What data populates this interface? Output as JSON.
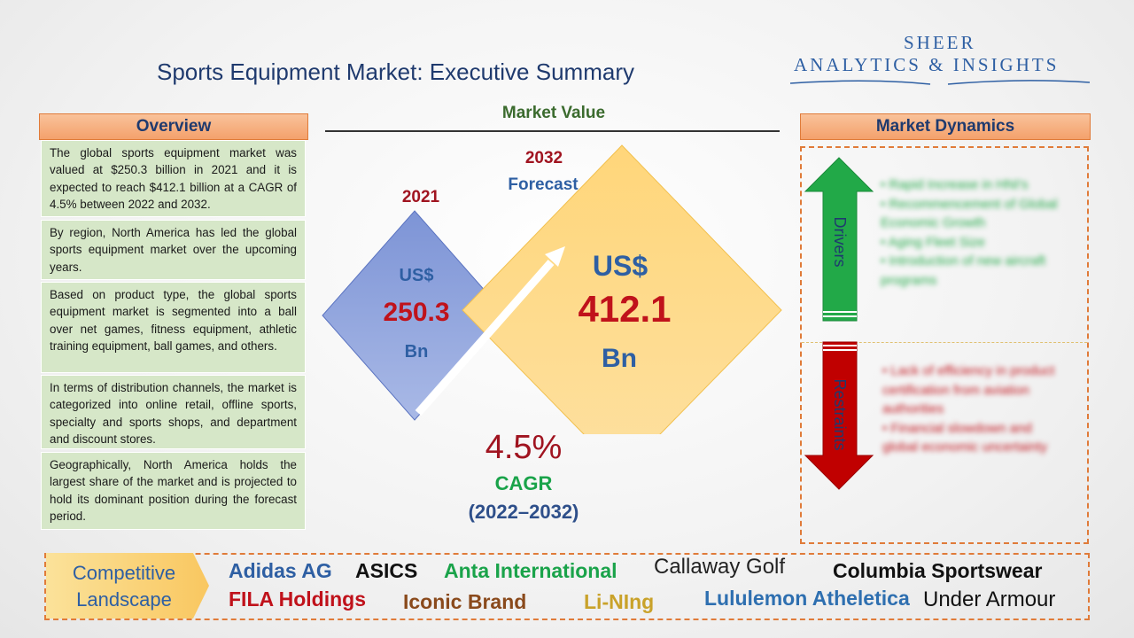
{
  "header": {
    "title": "Sports Equipment Market: Executive Summary",
    "logo_line1": "SHEER",
    "logo_line2": "ANALYTICS & INSIGHTS"
  },
  "overview": {
    "heading": "Overview",
    "paragraphs": [
      "The global sports equipment market was valued at $250.3 billion in 2021 and it is expected to reach $412.1 billion at a CAGR of 4.5% between 2022 and 2032.",
      "By region, North America has led the global sports equipment market over the upcoming years.",
      "Based on product type, the global sports equipment market is segmented into a ball over net games, fitness equipment, athletic training equipment, ball games, and others.",
      "In terms of distribution channels, the market is categorized into online retail, offline sports, specialty and sports shops, and department and discount stores.",
      "Geographically, North America holds the largest share of the market and is projected to hold its dominant position during the forecast period."
    ]
  },
  "market_value": {
    "heading": "Market Value",
    "base_year": "2021",
    "base_currency": "US$",
    "base_value": "250.3",
    "base_unit": "Bn",
    "forecast_year": "2032",
    "forecast_label": "Forecast",
    "forecast_currency": "US$",
    "forecast_value": "412.1",
    "forecast_unit": "Bn",
    "cagr_value": "4.5%",
    "cagr_label": "CAGR",
    "cagr_period": "(2022–2032)"
  },
  "dynamics": {
    "heading": "Market Dynamics",
    "drivers_label": "Drivers",
    "restraints_label": "Restraints",
    "drivers": [
      "Rapid Increase in HNI's",
      "Recommencement of Global Economic Growth",
      "Aging Fleet Size",
      "Introduction of new aircraft programs"
    ],
    "restraints": [
      "Lack of efficiency in product certification from aviation authorities",
      "Financial slowdown and global economic uncertainty"
    ]
  },
  "competitive": {
    "label_line1": "Competitive",
    "label_line2": "Landscape",
    "brands": [
      {
        "name": "Adidas AG",
        "color": "#2e5fa3"
      },
      {
        "name": "ASICS",
        "color": "#111111"
      },
      {
        "name": "Anta International",
        "color": "#1aa34a"
      },
      {
        "name": "Callaway Golf",
        "color": "#222222"
      },
      {
        "name": "Columbia Sportswear",
        "color": "#111111"
      },
      {
        "name": "FILA Holdings",
        "color": "#c0121b"
      },
      {
        "name": "Iconic Brand",
        "color": "#8a4a1c"
      },
      {
        "name": "Li-NIng",
        "color": "#c9a22a"
      },
      {
        "name": "Lululemon Atheletica",
        "color": "#2e6fb0"
      },
      {
        "name": "Under Armour",
        "color": "#111111"
      }
    ]
  },
  "colors": {
    "accent_orange": "#f4a16c",
    "title_navy": "#1f3a6e",
    "overview_green": "#d6e7c8",
    "value_red": "#c0121b",
    "driver_green": "#22a948",
    "restraint_red": "#c00000"
  }
}
